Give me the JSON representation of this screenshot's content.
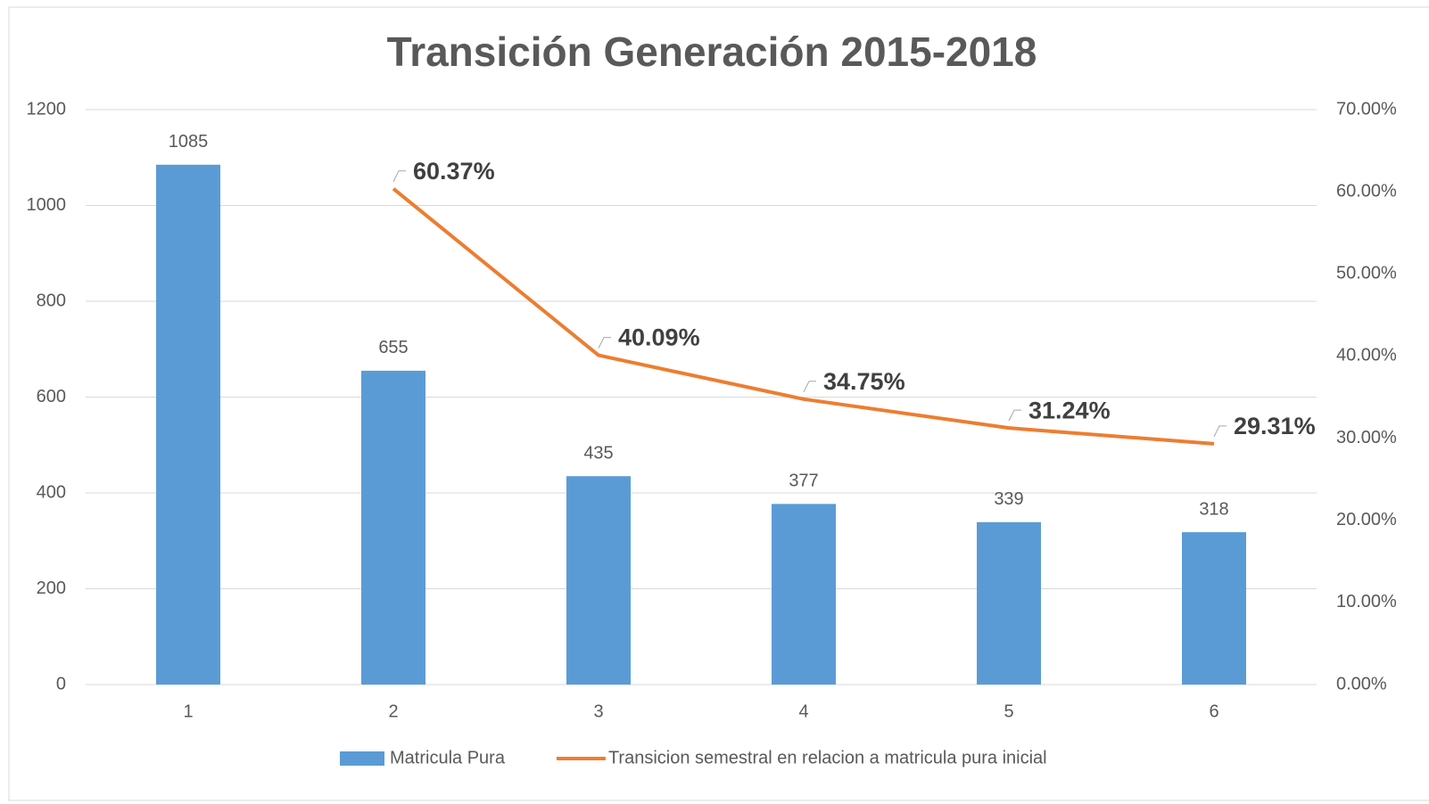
{
  "chart_data": {
    "type": "bar_line",
    "title": "Transición Generación 2015-2018",
    "categories": [
      "1",
      "2",
      "3",
      "4",
      "5",
      "6"
    ],
    "series": [
      {
        "name": "Matricula Pura",
        "type": "bar",
        "color": "#5b9bd5",
        "values": [
          1085,
          655,
          435,
          377,
          339,
          318
        ]
      },
      {
        "name": "Transicion semestral en relacion a matricula pura inicial",
        "type": "line",
        "axis": "y2",
        "color": "#ed7d31",
        "values": [
          null,
          60.37,
          40.09,
          34.75,
          31.24,
          29.31
        ],
        "value_labels": [
          null,
          "60.37%",
          "40.09%",
          "34.75%",
          "31.24%",
          "29.31%"
        ]
      }
    ],
    "ylim": [
      0,
      1200
    ],
    "yticks": [
      0,
      200,
      400,
      600,
      800,
      1000,
      1200
    ],
    "y2lim": [
      0,
      70
    ],
    "y2ticks": [
      {
        "value": 0,
        "label": "0.00%"
      },
      {
        "value": 10,
        "label": "10.00%"
      },
      {
        "value": 20,
        "label": "20.00%"
      },
      {
        "value": 30,
        "label": "30.00%"
      },
      {
        "value": 40,
        "label": "40.00%"
      },
      {
        "value": 50,
        "label": "50.00%"
      },
      {
        "value": 60,
        "label": "60.00%"
      },
      {
        "value": 70,
        "label": "70.00%"
      }
    ],
    "grid": true,
    "legend": "bottom"
  }
}
